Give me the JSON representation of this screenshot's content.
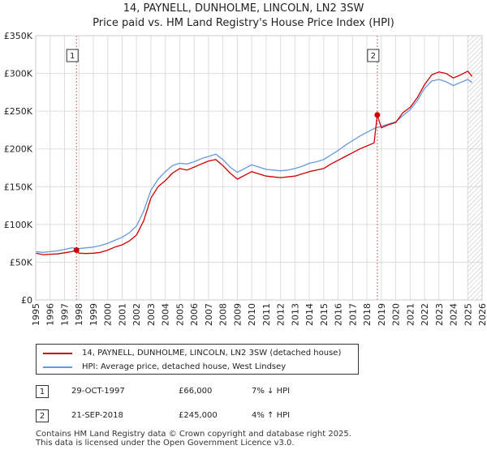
{
  "title_line1": "14, PAYNELL, DUNHOLME, LINCOLN, LN2 3SW",
  "title_line2": "Price paid vs. HM Land Registry's House Price Index (HPI)",
  "colors": {
    "property": "#cc0000",
    "hpi": "#6699dd",
    "grid": "#dddddd",
    "marker_line": "#dd6666",
    "future_hatch": "#bbbbbb"
  },
  "chart_data": {
    "type": "line",
    "title": "Price paid vs. HM Land Registry's House Price Index (HPI)",
    "xlabel": "",
    "ylabel": "",
    "xlim": [
      1995,
      2026
    ],
    "ylim": [
      0,
      350000
    ],
    "y_ticks": [
      0,
      50000,
      100000,
      150000,
      200000,
      250000,
      300000,
      350000
    ],
    "y_tick_labels": [
      "£0",
      "£50K",
      "£100K",
      "£150K",
      "£200K",
      "£250K",
      "£300K",
      "£350K"
    ],
    "x_ticks": [
      1995,
      1996,
      1997,
      1998,
      1999,
      2000,
      2001,
      2002,
      2003,
      2004,
      2005,
      2006,
      2007,
      2008,
      2009,
      2010,
      2011,
      2012,
      2013,
      2014,
      2015,
      2016,
      2017,
      2018,
      2019,
      2020,
      2021,
      2022,
      2023,
      2024,
      2025,
      2026
    ],
    "x_tick_labels": [
      "1995",
      "1996",
      "1997",
      "1998",
      "1999",
      "2000",
      "2001",
      "2002",
      "2003",
      "2004",
      "2005",
      "2006",
      "2007",
      "2008",
      "2009",
      "2010",
      "2011",
      "2012",
      "2013",
      "2014",
      "2015",
      "2016",
      "2017",
      "2018",
      "2019",
      "2020",
      "2021",
      "2022",
      "2023",
      "2024",
      "2025",
      "2026"
    ],
    "grid": true,
    "series": [
      {
        "name": "14, PAYNELL, DUNHOLME, LINCOLN, LN2 3SW (detached house)",
        "x": [
          1995.0,
          1995.5,
          1996.0,
          1996.5,
          1997.0,
          1997.5,
          1997.83,
          1998.0,
          1998.5,
          1999.0,
          1999.5,
          2000.0,
          2000.5,
          2001.0,
          2001.5,
          2002.0,
          2002.5,
          2003.0,
          2003.5,
          2004.0,
          2004.5,
          2005.0,
          2005.5,
          2006.0,
          2006.5,
          2007.0,
          2007.5,
          2008.0,
          2008.5,
          2009.0,
          2009.5,
          2010.0,
          2010.5,
          2011.0,
          2011.5,
          2012.0,
          2012.5,
          2013.0,
          2013.5,
          2014.0,
          2014.5,
          2015.0,
          2015.5,
          2016.0,
          2016.5,
          2017.0,
          2017.5,
          2018.0,
          2018.5,
          2018.72,
          2019.0,
          2019.5,
          2020.0,
          2020.5,
          2021.0,
          2021.5,
          2022.0,
          2022.5,
          2023.0,
          2023.5,
          2024.0,
          2024.5,
          2025.0,
          2025.3
        ],
        "values": [
          62000,
          60000,
          60500,
          61000,
          62500,
          64000,
          66000,
          62000,
          61500,
          62000,
          63000,
          66000,
          70000,
          73000,
          78000,
          86000,
          105000,
          135000,
          150000,
          158000,
          168000,
          174000,
          172000,
          176000,
          180000,
          184000,
          186000,
          178000,
          168000,
          160000,
          165000,
          170000,
          167000,
          164000,
          163000,
          162000,
          163000,
          164000,
          167000,
          170000,
          172000,
          174000,
          180000,
          185000,
          190000,
          195000,
          200000,
          204000,
          208000,
          245000,
          228000,
          232000,
          235000,
          248000,
          255000,
          268000,
          285000,
          298000,
          302000,
          300000,
          294000,
          298000,
          303000,
          296000
        ]
      },
      {
        "name": "HPI: Average price, detached house, West Lindsey",
        "x": [
          1995.0,
          1995.5,
          1996.0,
          1996.5,
          1997.0,
          1997.5,
          1998.0,
          1998.5,
          1999.0,
          1999.5,
          2000.0,
          2000.5,
          2001.0,
          2001.5,
          2002.0,
          2002.5,
          2003.0,
          2003.5,
          2004.0,
          2004.5,
          2005.0,
          2005.5,
          2006.0,
          2006.5,
          2007.0,
          2007.5,
          2008.0,
          2008.5,
          2009.0,
          2009.5,
          2010.0,
          2010.5,
          2011.0,
          2011.5,
          2012.0,
          2012.5,
          2013.0,
          2013.5,
          2014.0,
          2014.5,
          2015.0,
          2015.5,
          2016.0,
          2016.5,
          2017.0,
          2017.5,
          2018.0,
          2018.5,
          2019.0,
          2019.5,
          2020.0,
          2020.5,
          2021.0,
          2021.5,
          2022.0,
          2022.5,
          2023.0,
          2023.5,
          2024.0,
          2024.5,
          2025.0,
          2025.3
        ],
        "values": [
          64000,
          63000,
          64000,
          65000,
          67000,
          69000,
          68000,
          69000,
          70000,
          72000,
          75000,
          79000,
          83000,
          89000,
          98000,
          118000,
          145000,
          160000,
          170000,
          178000,
          181000,
          180000,
          183000,
          187000,
          190000,
          193000,
          186000,
          176000,
          169000,
          174000,
          179000,
          176000,
          173000,
          172000,
          171000,
          172000,
          174000,
          177000,
          181000,
          183000,
          186000,
          192000,
          198000,
          205000,
          211000,
          217000,
          222000,
          227000,
          230000,
          233000,
          236000,
          244000,
          252000,
          264000,
          280000,
          290000,
          292000,
          289000,
          284000,
          288000,
          292000,
          288000
        ]
      }
    ],
    "annotations": [
      {
        "label": "1",
        "x": 1997.83,
        "y": 66000
      },
      {
        "label": "2",
        "x": 2018.72,
        "y": 245000
      }
    ]
  },
  "legend": [
    {
      "label": "14, PAYNELL, DUNHOLME, LINCOLN, LN2 3SW (detached house)"
    },
    {
      "label": "HPI: Average price, detached house, West Lindsey"
    }
  ],
  "transactions": [
    {
      "num": "1",
      "date": "29-OCT-1997",
      "price": "£66,000",
      "hpi": "7% ↓ HPI"
    },
    {
      "num": "2",
      "date": "21-SEP-2018",
      "price": "£245,000",
      "hpi": "4% ↑ HPI"
    }
  ],
  "footer_line1": "Contains HM Land Registry data © Crown copyright and database right 2025.",
  "footer_line2": "This data is licensed under the Open Government Licence v3.0."
}
